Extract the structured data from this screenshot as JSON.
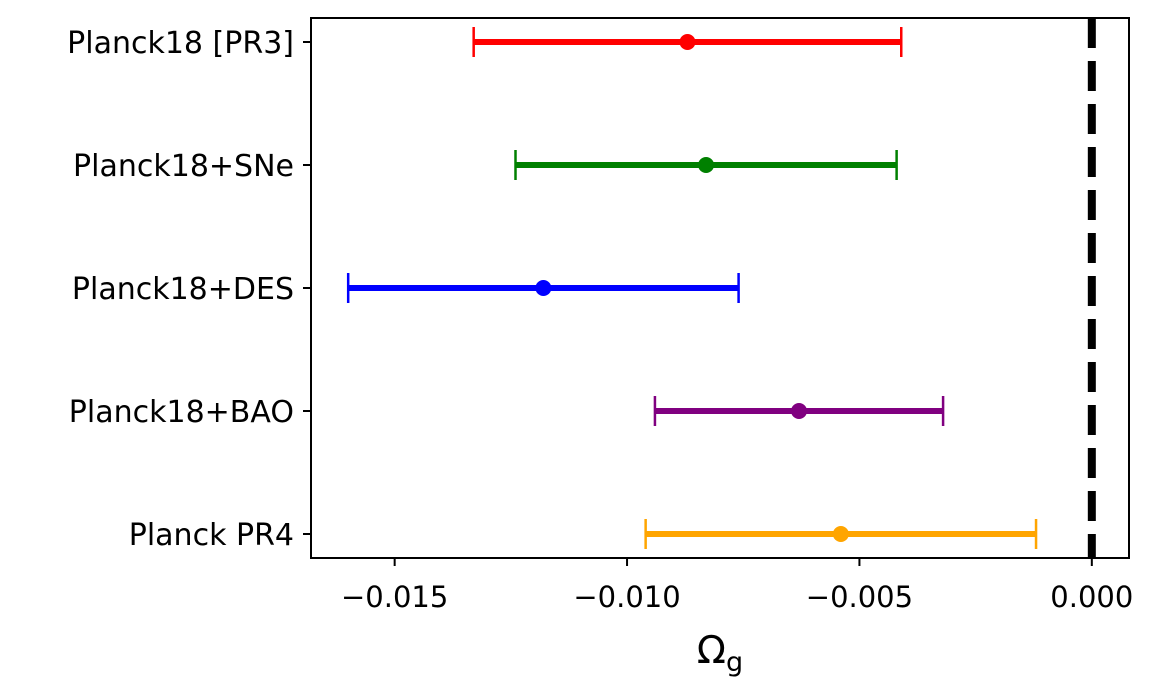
{
  "chart_data": {
    "type": "errorbar",
    "title": "",
    "xlabel": "Ω",
    "xlabel_subscript": "g",
    "ylabel": "",
    "xlim": [
      -0.0168,
      0.0008
    ],
    "xticks": [
      -0.015,
      -0.01,
      -0.005,
      0.0
    ],
    "xtick_labels": [
      "−0.015",
      "−0.010",
      "−0.005",
      "0.000"
    ],
    "reference_line": {
      "x": 0.0,
      "style": "dashed",
      "color": "#000000"
    },
    "series": [
      {
        "name": "Planck18 [PR3]",
        "value": -0.0087,
        "lower": -0.0133,
        "upper": -0.0041,
        "color": "#ff0000"
      },
      {
        "name": "Planck18+SNe",
        "value": -0.0083,
        "lower": -0.0124,
        "upper": -0.0042,
        "color": "#008000"
      },
      {
        "name": "Planck18+DES",
        "value": -0.0118,
        "lower": -0.016,
        "upper": -0.0076,
        "color": "#0000ff"
      },
      {
        "name": "Planck18+BAO",
        "value": -0.0063,
        "lower": -0.0094,
        "upper": -0.0032,
        "color": "#800080"
      },
      {
        "name": "Planck PR4",
        "value": -0.0054,
        "lower": -0.0096,
        "upper": -0.0012,
        "color": "#ffa500"
      }
    ]
  }
}
